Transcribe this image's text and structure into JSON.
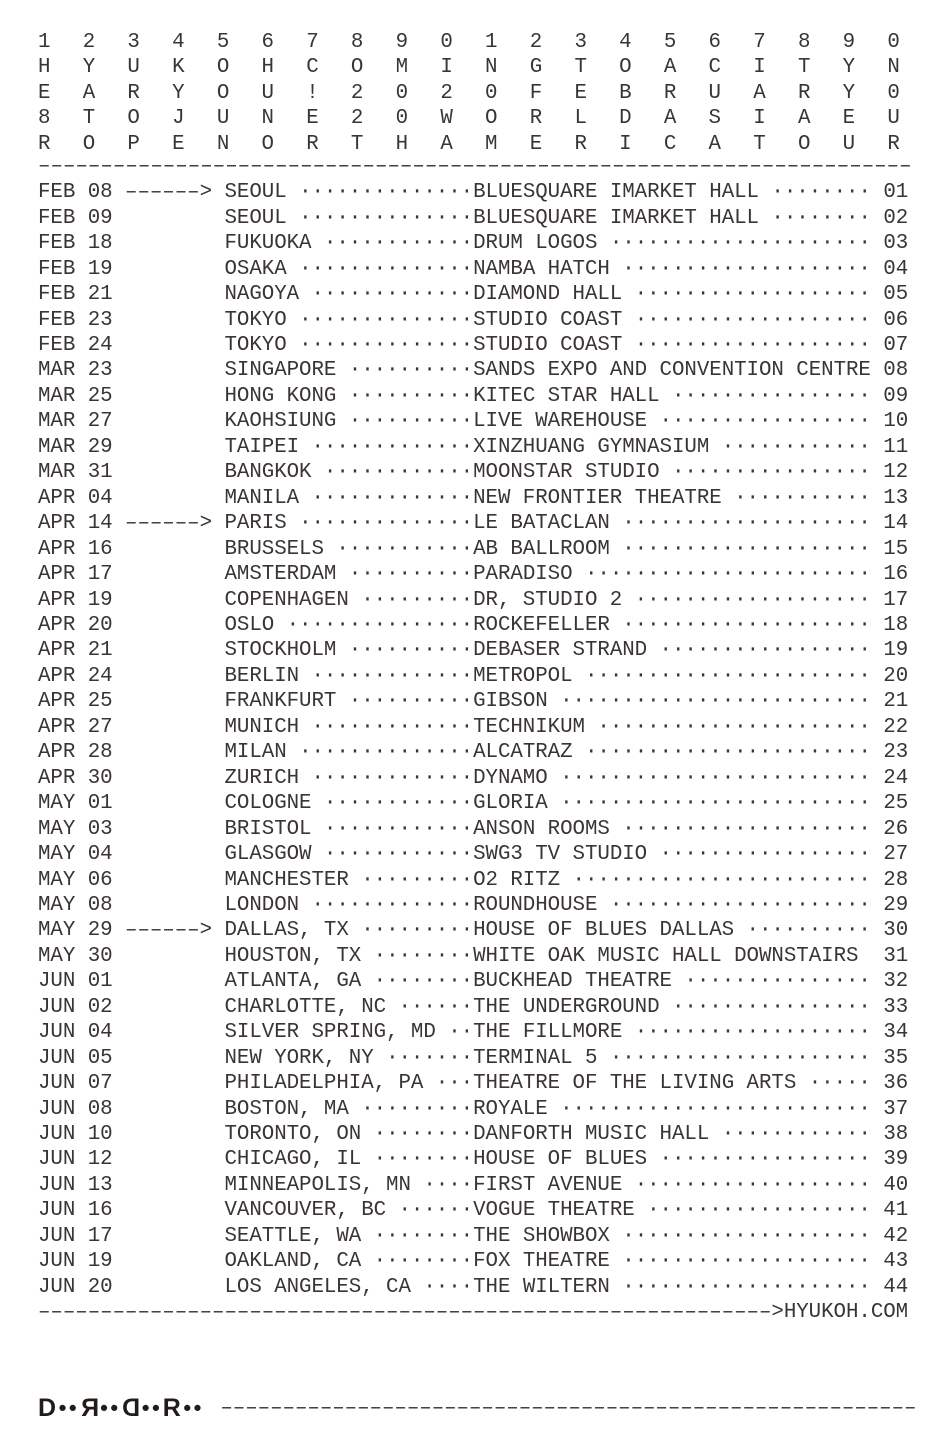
{
  "poster": {
    "background": "#ffffff",
    "text_color": "#3a3534",
    "logo_color": "#221b18"
  },
  "header_grid": {
    "rows": [
      "12345678901234567890",
      "HYUKOHCOMINGTOACITYN",
      "EARYOU!2020FEBRUARY0",
      "8TOJUNE20WORLDASIAEU",
      "ROPENORTHAMERICATOUR"
    ]
  },
  "dividers": {
    "dash_char": "–",
    "top_count": 70,
    "website_leader_count": 59,
    "bottom_count": 56
  },
  "website": {
    "arrow_head": ">",
    "url": "HYUKOH.COM"
  },
  "arrow_glyph": "––––––>",
  "dot_leader_char": "·",
  "shows": [
    {
      "num": "01",
      "date": "FEB 08",
      "arrow": true,
      "city": "SEOUL",
      "venue": "BLUESQUARE IMARKET HALL"
    },
    {
      "num": "02",
      "date": "FEB 09",
      "arrow": false,
      "city": "SEOUL",
      "venue": "BLUESQUARE IMARKET HALL"
    },
    {
      "num": "03",
      "date": "FEB 18",
      "arrow": false,
      "city": "FUKUOKA",
      "venue": "DRUM LOGOS"
    },
    {
      "num": "04",
      "date": "FEB 19",
      "arrow": false,
      "city": "OSAKA",
      "venue": "NAMBA HATCH"
    },
    {
      "num": "05",
      "date": "FEB 21",
      "arrow": false,
      "city": "NAGOYA",
      "venue": "DIAMOND HALL"
    },
    {
      "num": "06",
      "date": "FEB 23",
      "arrow": false,
      "city": "TOKYO",
      "venue": "STUDIO COAST"
    },
    {
      "num": "07",
      "date": "FEB 24",
      "arrow": false,
      "city": "TOKYO",
      "venue": "STUDIO COAST"
    },
    {
      "num": "08",
      "date": "MAR 23",
      "arrow": false,
      "city": "SINGAPORE",
      "venue": "SANDS EXPO AND CONVENTION CENTRE"
    },
    {
      "num": "09",
      "date": "MAR 25",
      "arrow": false,
      "city": "HONG KONG",
      "venue": "KITEC STAR HALL"
    },
    {
      "num": "10",
      "date": "MAR 27",
      "arrow": false,
      "city": "KAOHSIUNG",
      "venue": "LIVE WAREHOUSE"
    },
    {
      "num": "11",
      "date": "MAR 29",
      "arrow": false,
      "city": "TAIPEI",
      "venue": "XINZHUANG GYMNASIUM"
    },
    {
      "num": "12",
      "date": "MAR 31",
      "arrow": false,
      "city": "BANGKOK",
      "venue": "MOONSTAR STUDIO"
    },
    {
      "num": "13",
      "date": "APR 04",
      "arrow": false,
      "city": "MANILA",
      "venue": "NEW FRONTIER THEATRE"
    },
    {
      "num": "14",
      "date": "APR 14",
      "arrow": true,
      "city": "PARIS",
      "venue": "LE BATACLAN"
    },
    {
      "num": "15",
      "date": "APR 16",
      "arrow": false,
      "city": "BRUSSELS",
      "venue": "AB BALLROOM"
    },
    {
      "num": "16",
      "date": "APR 17",
      "arrow": false,
      "city": "AMSTERDAM",
      "venue": "PARADISO"
    },
    {
      "num": "17",
      "date": "APR 19",
      "arrow": false,
      "city": "COPENHAGEN",
      "venue": "DR, STUDIO 2"
    },
    {
      "num": "18",
      "date": "APR 20",
      "arrow": false,
      "city": "OSLO",
      "venue": "ROCKEFELLER"
    },
    {
      "num": "19",
      "date": "APR 21",
      "arrow": false,
      "city": "STOCKHOLM",
      "venue": "DEBASER STRAND"
    },
    {
      "num": "20",
      "date": "APR 24",
      "arrow": false,
      "city": "BERLIN",
      "venue": "METROPOL"
    },
    {
      "num": "21",
      "date": "APR 25",
      "arrow": false,
      "city": "FRANKFURT",
      "venue": "GIBSON"
    },
    {
      "num": "22",
      "date": "APR 27",
      "arrow": false,
      "city": "MUNICH",
      "venue": "TECHNIKUM"
    },
    {
      "num": "23",
      "date": "APR 28",
      "arrow": false,
      "city": "MILAN",
      "venue": "ALCATRAZ"
    },
    {
      "num": "24",
      "date": "APR 30",
      "arrow": false,
      "city": "ZURICH",
      "venue": "DYNAMO"
    },
    {
      "num": "25",
      "date": "MAY 01",
      "arrow": false,
      "city": "COLOGNE",
      "venue": "GLORIA"
    },
    {
      "num": "26",
      "date": "MAY 03",
      "arrow": false,
      "city": "BRISTOL",
      "venue": "ANSON ROOMS"
    },
    {
      "num": "27",
      "date": "MAY 04",
      "arrow": false,
      "city": "GLASGOW",
      "venue": "SWG3 TV STUDIO"
    },
    {
      "num": "28",
      "date": "MAY 06",
      "arrow": false,
      "city": "MANCHESTER",
      "venue": "O2 RITZ"
    },
    {
      "num": "29",
      "date": "MAY 08",
      "arrow": false,
      "city": "LONDON",
      "venue": "ROUNDHOUSE"
    },
    {
      "num": "30",
      "date": "MAY 29",
      "arrow": true,
      "city": "DALLAS, TX",
      "venue": "HOUSE OF BLUES DALLAS"
    },
    {
      "num": "31",
      "date": "MAY 30",
      "arrow": false,
      "city": "HOUSTON, TX",
      "venue": "WHITE OAK MUSIC HALL DOWNSTAIRS"
    },
    {
      "num": "32",
      "date": "JUN 01",
      "arrow": false,
      "city": "ATLANTA, GA",
      "venue": "BUCKHEAD THEATRE"
    },
    {
      "num": "33",
      "date": "JUN 02",
      "arrow": false,
      "city": "CHARLOTTE, NC",
      "venue": "THE UNDERGROUND"
    },
    {
      "num": "34",
      "date": "JUN 04",
      "arrow": false,
      "city": "SILVER SPRING, MD",
      "venue": "THE FILLMORE"
    },
    {
      "num": "35",
      "date": "JUN 05",
      "arrow": false,
      "city": "NEW YORK, NY",
      "venue": "TERMINAL 5"
    },
    {
      "num": "36",
      "date": "JUN 07",
      "arrow": false,
      "city": "PHILADELPHIA, PA",
      "venue": "THEATRE OF THE LIVING ARTS"
    },
    {
      "num": "37",
      "date": "JUN 08",
      "arrow": false,
      "city": "BOSTON, MA",
      "venue": "ROYALE"
    },
    {
      "num": "38",
      "date": "JUN 10",
      "arrow": false,
      "city": "TORONTO, ON",
      "venue": "DANFORTH MUSIC HALL"
    },
    {
      "num": "39",
      "date": "JUN 12",
      "arrow": false,
      "city": "CHICAGO, IL",
      "venue": "HOUSE OF BLUES"
    },
    {
      "num": "40",
      "date": "JUN 13",
      "arrow": false,
      "city": "MINNEAPOLIS, MN",
      "venue": "FIRST AVENUE"
    },
    {
      "num": "41",
      "date": "JUN 16",
      "arrow": false,
      "city": "VANCOUVER, BC",
      "venue": "VOGUE THEATRE"
    },
    {
      "num": "42",
      "date": "JUN 17",
      "arrow": false,
      "city": "SEATTLE, WA",
      "venue": "THE SHOWBOX"
    },
    {
      "num": "43",
      "date": "JUN 19",
      "arrow": false,
      "city": "OAKLAND, CA",
      "venue": "FOX THEATRE"
    },
    {
      "num": "44",
      "date": "JUN 20",
      "arrow": false,
      "city": "LOS ANGELES, CA",
      "venue": "THE WILTERN"
    }
  ],
  "logo": {
    "label": "DooRooDooRoo",
    "segments": [
      {
        "glyph": "D",
        "flipped": false
      },
      {
        "glyph": "●●",
        "dots": true
      },
      {
        "glyph": "R",
        "flipped": true
      },
      {
        "glyph": "●●",
        "dots": true
      },
      {
        "glyph": "D",
        "flipped": true
      },
      {
        "glyph": "●●",
        "dots": true
      },
      {
        "glyph": "R",
        "flipped": false
      },
      {
        "glyph": "●●",
        "dots": true
      }
    ]
  }
}
